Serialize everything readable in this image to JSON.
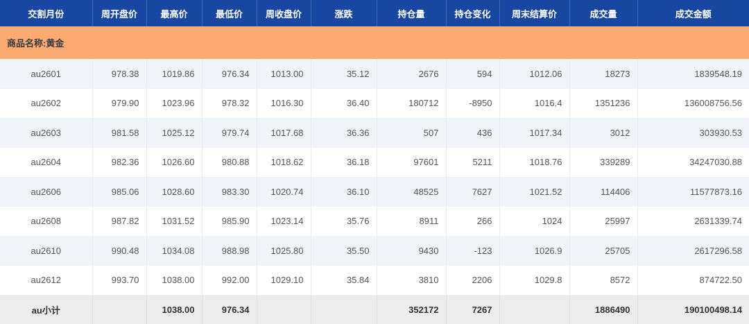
{
  "table": {
    "columns": [
      {
        "key": "delivery_month",
        "label": "交割月份"
      },
      {
        "key": "week_open",
        "label": "周开盘价"
      },
      {
        "key": "high",
        "label": "最高价"
      },
      {
        "key": "low",
        "label": "最低价"
      },
      {
        "key": "week_close",
        "label": "周收盘价"
      },
      {
        "key": "change",
        "label": "涨跌"
      },
      {
        "key": "open_interest",
        "label": "持仓量"
      },
      {
        "key": "oi_change",
        "label": "持仓变化"
      },
      {
        "key": "weekend_settle",
        "label": "周末结算价"
      },
      {
        "key": "volume",
        "label": "成交量"
      },
      {
        "key": "turnover",
        "label": "成交金额"
      }
    ],
    "group_row": {
      "label": "商品名称:黄金"
    },
    "rows": [
      [
        "au2601",
        "978.38",
        "1019.86",
        "976.34",
        "1013.00",
        "35.12",
        "2676",
        "594",
        "1012.06",
        "18273",
        "1839548.19"
      ],
      [
        "au2602",
        "979.90",
        "1023.96",
        "978.32",
        "1016.30",
        "36.40",
        "180712",
        "-8950",
        "1016.4",
        "1351236",
        "136008756.56"
      ],
      [
        "au2603",
        "981.58",
        "1025.12",
        "979.74",
        "1017.68",
        "36.36",
        "507",
        "436",
        "1017.34",
        "3012",
        "303930.53"
      ],
      [
        "au2604",
        "982.36",
        "1026.60",
        "980.88",
        "1018.62",
        "36.18",
        "97601",
        "5211",
        "1018.76",
        "339289",
        "34247030.88"
      ],
      [
        "au2606",
        "985.06",
        "1028.60",
        "983.30",
        "1020.74",
        "36.10",
        "48525",
        "7627",
        "1021.52",
        "114406",
        "11577873.16"
      ],
      [
        "au2608",
        "987.82",
        "1031.52",
        "985.90",
        "1023.14",
        "35.76",
        "8911",
        "266",
        "1024",
        "25997",
        "2631339.74"
      ],
      [
        "au2610",
        "990.48",
        "1034.08",
        "988.98",
        "1025.80",
        "35.50",
        "9430",
        "-123",
        "1026.9",
        "25705",
        "2617296.58"
      ],
      [
        "au2612",
        "993.70",
        "1038.00",
        "992.00",
        "1029.10",
        "35.84",
        "3810",
        "2206",
        "1029.8",
        "8572",
        "874722.50"
      ]
    ],
    "summary_row": [
      "au小计",
      "",
      "1038.00",
      "976.34",
      "",
      "",
      "352172",
      "7267",
      "",
      "1886490",
      "190100498.14"
    ]
  },
  "colors": {
    "header_bg": "#1847a1",
    "header_divider": "#3f67b6",
    "group_bg": "#fbaa72",
    "row_alt_bg": "#f1f5fa",
    "row_plain_bg": "#ffffff",
    "summary_bg": "#ececec"
  }
}
